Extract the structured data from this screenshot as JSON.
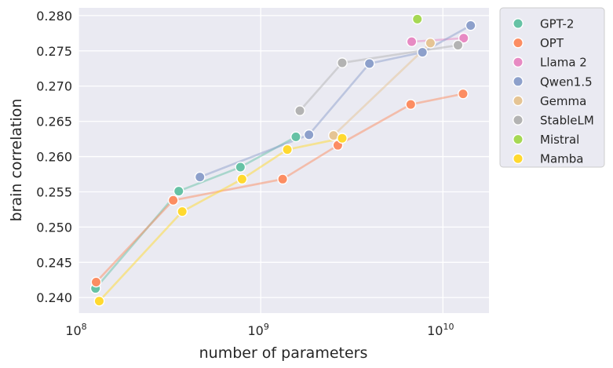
{
  "chart_data": {
    "type": "line",
    "xlabel": "number of parameters",
    "ylabel": "brain correlation",
    "xscale": "log",
    "xlim": [
      100000000,
      17900000000
    ],
    "ylim": [
      0.2378,
      0.2811
    ],
    "grid": true,
    "legend_position": "outside-right-top",
    "x_ticks": [
      {
        "value": 100000000,
        "base": "10",
        "exp": "8"
      },
      {
        "value": 1000000000,
        "base": "10",
        "exp": "9"
      },
      {
        "value": 10000000000,
        "base": "10",
        "exp": "10"
      }
    ],
    "y_ticks": [
      0.24,
      0.245,
      0.25,
      0.255,
      0.26,
      0.265,
      0.27,
      0.275,
      0.28
    ],
    "y_tick_labels": [
      "0.240",
      "0.245",
      "0.250",
      "0.255",
      "0.260",
      "0.265",
      "0.270",
      "0.275",
      "0.280"
    ],
    "series": [
      {
        "name": "GPT-2",
        "color": "#66c2a5",
        "points": [
          [
            124000000,
            0.2413
          ],
          [
            355000000,
            0.2551
          ],
          [
            774000000,
            0.2585
          ],
          [
            1560000000,
            0.2628
          ]
        ]
      },
      {
        "name": "OPT",
        "color": "#fc8d62",
        "points": [
          [
            125000000,
            0.2422
          ],
          [
            331000000,
            0.2538
          ],
          [
            1320000000,
            0.2568
          ],
          [
            2650000000,
            0.2616
          ],
          [
            6660000000,
            0.2674
          ],
          [
            12900000000,
            0.2689
          ]
        ]
      },
      {
        "name": "Llama 2",
        "color": "#e78ac3",
        "points": [
          [
            6740000000,
            0.2763
          ],
          [
            13000000000,
            0.2768
          ]
        ]
      },
      {
        "name": "Qwen1.5",
        "color": "#8da0cb",
        "points": [
          [
            464000000,
            0.2571
          ],
          [
            1840000000,
            0.2631
          ],
          [
            3950000000,
            0.2732
          ],
          [
            7720000000,
            0.2748
          ],
          [
            14200000000,
            0.2786
          ]
        ]
      },
      {
        "name": "Gemma",
        "color": "#e5c494",
        "points": [
          [
            2510000000,
            0.263
          ],
          [
            8540000000,
            0.2761
          ]
        ]
      },
      {
        "name": "StableLM",
        "color": "#b3b3b3",
        "points": [
          [
            1640000000,
            0.2665
          ],
          [
            2800000000,
            0.2733
          ],
          [
            12100000000,
            0.2758
          ]
        ]
      },
      {
        "name": "Mistral",
        "color": "#a6d854",
        "points": [
          [
            7240000000,
            0.2795
          ]
        ]
      },
      {
        "name": "Mamba",
        "color": "#ffd92f",
        "points": [
          [
            130000000,
            0.2395
          ],
          [
            371000000,
            0.2522
          ],
          [
            790000000,
            0.2568
          ],
          [
            1400000000,
            0.261
          ],
          [
            2800000000,
            0.2626
          ]
        ]
      }
    ]
  }
}
